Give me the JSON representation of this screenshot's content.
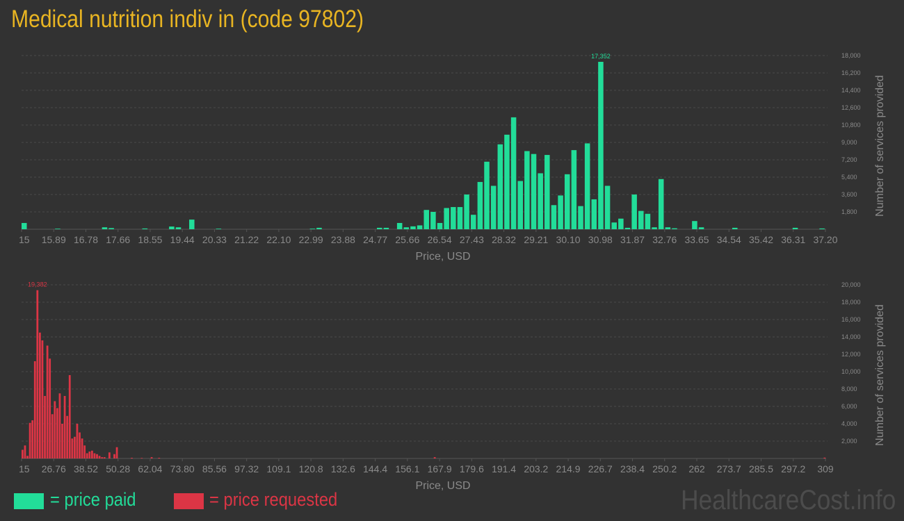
{
  "title": "Medical nutrition indiv in (code 97802)",
  "chart_data": [
    {
      "type": "bar",
      "name": "price-paid",
      "color": "#22dd99",
      "xlabel": "Price, USD",
      "ylabel": "Number of services provided",
      "ylim": [
        0,
        18000
      ],
      "ytick_labels": [
        "1,800",
        "3,600",
        "5,400",
        "7,200",
        "9,000",
        "10,800",
        "12,600",
        "14,400",
        "16,200",
        "18,000"
      ],
      "ytick_values": [
        1800,
        3600,
        5400,
        7200,
        9000,
        10800,
        12600,
        14400,
        16200,
        18000
      ],
      "xtick_labels": [
        "15",
        "15.89",
        "16.78",
        "17.66",
        "18.55",
        "19.44",
        "20.33",
        "21.22",
        "22.10",
        "22.99",
        "23.88",
        "24.77",
        "25.66",
        "26.54",
        "27.43",
        "28.32",
        "29.21",
        "30.10",
        "30.98",
        "31.87",
        "32.76",
        "33.65",
        "34.54",
        "35.42",
        "36.31",
        "37.20"
      ],
      "peak_label": "17,352",
      "values": [
        650,
        0,
        0,
        0,
        0,
        60,
        0,
        0,
        0,
        0,
        0,
        0,
        200,
        120,
        0,
        0,
        0,
        0,
        80,
        0,
        0,
        0,
        280,
        200,
        0,
        1000,
        0,
        0,
        0,
        60,
        0,
        0,
        0,
        0,
        0,
        0,
        0,
        0,
        0,
        0,
        0,
        0,
        0,
        60,
        150,
        0,
        0,
        0,
        0,
        0,
        0,
        0,
        0,
        150,
        150,
        0,
        650,
        200,
        300,
        400,
        2000,
        1800,
        650,
        2200,
        2300,
        2300,
        3600,
        1500,
        4900,
        7000,
        4500,
        8800,
        9800,
        11600,
        5000,
        8100,
        7800,
        5800,
        7700,
        2500,
        3500,
        5700,
        8200,
        2400,
        8900,
        3100,
        17352,
        4500,
        700,
        1100,
        150,
        3600,
        1900,
        1600,
        200,
        5200,
        200,
        100,
        0,
        0,
        850,
        200,
        0,
        0,
        0,
        0,
        150,
        0,
        0,
        0,
        0,
        0,
        0,
        0,
        0,
        150,
        0,
        0,
        0,
        80
      ]
    },
    {
      "type": "bar",
      "name": "price-requested",
      "color": "#dc3545",
      "xlabel": "Price, USD",
      "ylabel": "Number of services provided",
      "ylim": [
        0,
        20000
      ],
      "ytick_labels": [
        "2,000",
        "4,000",
        "6,000",
        "8,000",
        "10,000",
        "12,000",
        "14,000",
        "16,000",
        "18,000",
        "20,000"
      ],
      "ytick_values": [
        2000,
        4000,
        6000,
        8000,
        10000,
        12000,
        14000,
        16000,
        18000,
        20000
      ],
      "xtick_labels": [
        "15",
        "26.76",
        "38.52",
        "50.28",
        "62.04",
        "73.80",
        "85.56",
        "97.32",
        "109.1",
        "120.8",
        "132.6",
        "144.4",
        "156.1",
        "167.9",
        "179.6",
        "191.4",
        "203.2",
        "214.9",
        "226.7",
        "238.4",
        "250.2",
        "262",
        "273.7",
        "285.5",
        "297.2",
        "309"
      ],
      "peak_label": "19,382",
      "values": [
        1000,
        1500,
        300,
        4100,
        4400,
        11200,
        19382,
        14500,
        13600,
        7200,
        13000,
        11500,
        5100,
        6600,
        5800,
        7500,
        4000,
        7200,
        4900,
        9600,
        2300,
        2500,
        4000,
        3000,
        2300,
        1500,
        600,
        800,
        900,
        600,
        500,
        300,
        150,
        150,
        0,
        700,
        0,
        500,
        1300,
        0,
        0,
        0,
        0,
        0,
        80,
        0,
        0,
        0,
        60,
        0,
        0,
        0,
        150,
        0,
        0,
        80,
        0,
        0,
        0,
        0,
        0,
        0,
        0,
        0,
        0,
        0,
        0,
        0,
        0,
        0,
        0,
        0,
        0,
        0,
        0,
        0,
        0,
        0,
        0,
        0,
        0,
        0,
        0,
        0,
        0,
        0,
        0,
        0,
        0,
        0,
        0,
        0,
        0,
        0,
        0,
        0,
        0,
        0,
        0,
        0,
        0,
        0,
        0,
        0,
        0,
        0,
        0,
        0,
        0,
        0,
        0,
        0,
        0,
        0,
        0,
        0,
        0,
        0,
        0,
        0,
        0,
        0,
        0,
        0,
        0,
        0,
        0,
        0,
        0,
        0,
        0,
        0,
        0,
        0,
        0,
        0,
        0,
        0,
        0,
        0,
        0,
        0,
        0,
        0,
        0,
        0,
        0,
        0,
        0,
        0,
        0,
        0,
        0,
        0,
        0,
        0,
        0,
        0,
        0,
        0,
        0,
        0,
        0,
        0,
        0,
        0,
        150,
        0,
        0,
        0,
        0,
        0,
        0,
        0,
        0,
        0,
        0,
        0,
        0,
        0,
        0,
        0,
        0,
        0,
        0,
        0,
        0,
        0,
        0,
        0,
        0,
        0,
        0,
        0,
        0,
        0,
        0,
        0,
        0,
        0,
        0,
        0,
        0,
        0,
        0,
        0,
        0,
        0,
        0,
        0,
        0,
        0,
        0,
        0,
        0,
        0,
        0,
        0,
        0,
        0,
        0,
        0,
        0,
        0,
        0,
        0,
        0,
        0,
        0,
        0,
        0,
        0,
        0,
        0,
        0,
        0,
        0,
        0,
        0,
        0,
        0,
        0,
        0,
        0,
        0,
        0,
        0,
        0,
        0,
        0,
        0,
        0,
        0,
        0,
        0,
        0,
        0,
        0,
        0,
        0,
        0,
        0,
        0,
        0,
        0,
        0,
        0,
        0,
        0,
        0,
        0,
        0,
        0,
        0,
        0,
        0,
        0,
        0,
        0,
        0,
        0,
        0,
        0,
        0,
        0,
        0,
        0,
        0,
        0,
        0,
        0,
        0,
        0,
        0,
        0,
        0,
        0,
        0,
        0,
        0,
        0,
        0,
        0,
        0,
        0,
        0,
        0,
        0,
        0,
        0,
        0,
        0,
        0,
        0,
        0,
        0,
        0,
        0,
        0,
        0,
        0,
        0,
        0,
        100
      ]
    }
  ],
  "legend": [
    {
      "label": "= price paid",
      "color": "#22dd99"
    },
    {
      "label": "= price requested",
      "color": "#dc3545"
    }
  ],
  "watermark": "HealthcareCost.info"
}
